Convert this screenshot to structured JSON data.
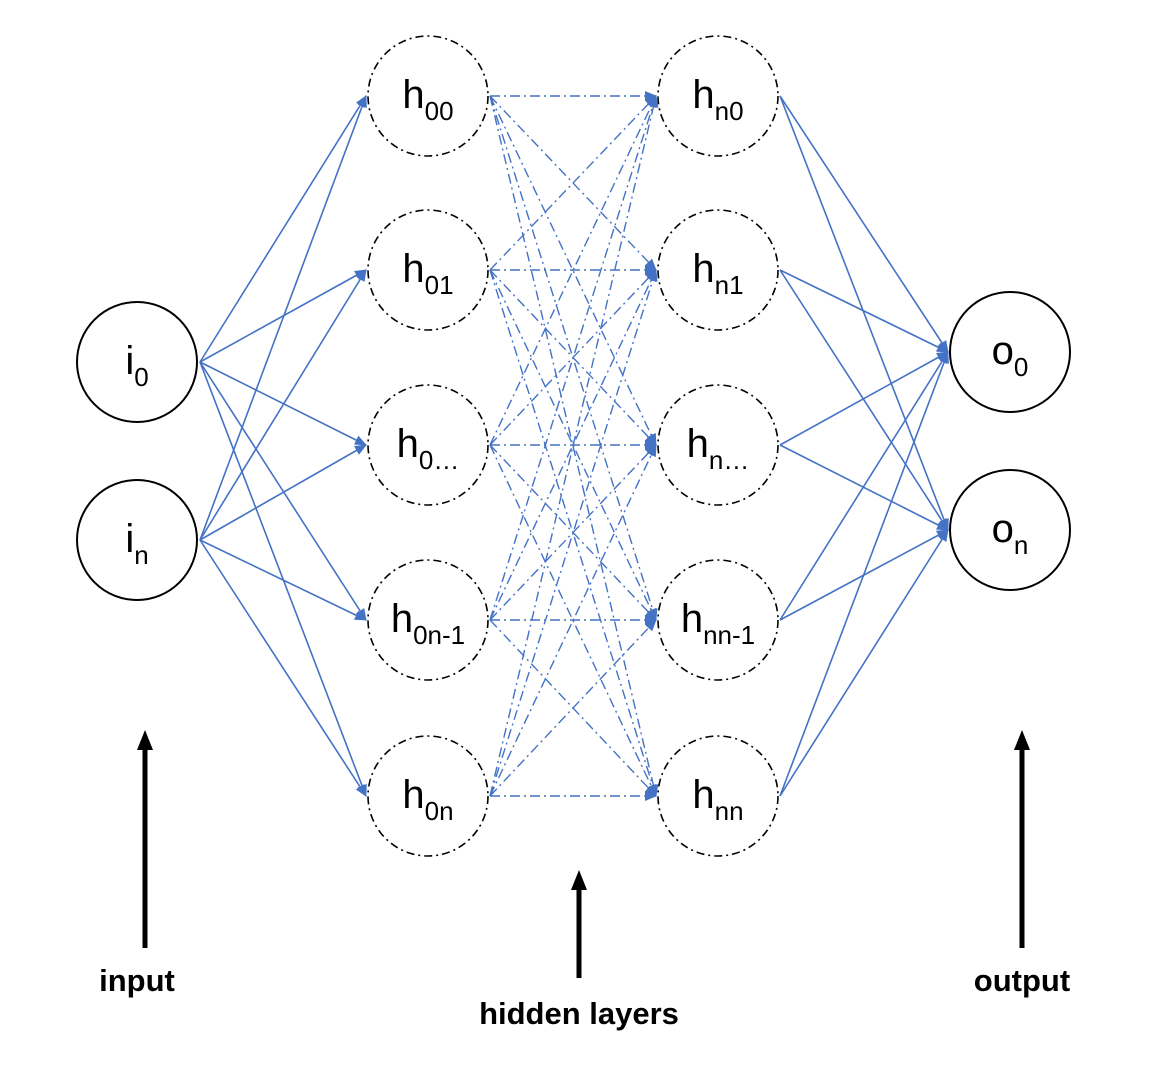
{
  "diagram": {
    "colors": {
      "edge": "#4472c4",
      "node_stroke": "#000000",
      "background": "#ffffff"
    },
    "layers": {
      "input": [
        {
          "id": "i0",
          "base": "i",
          "sub": "0"
        },
        {
          "id": "in",
          "base": "i",
          "sub": "n"
        }
      ],
      "hidden_first": [
        {
          "id": "h00",
          "base": "h",
          "sub": "00"
        },
        {
          "id": "h01",
          "base": "h",
          "sub": "01"
        },
        {
          "id": "h0dots",
          "base": "h",
          "sub": "0…"
        },
        {
          "id": "h0n1",
          "base": "h",
          "sub": "0n-1"
        },
        {
          "id": "h0n",
          "base": "h",
          "sub": "0n"
        }
      ],
      "hidden_last": [
        {
          "id": "hn0",
          "base": "h",
          "sub": "n0"
        },
        {
          "id": "hn1",
          "base": "h",
          "sub": "n1"
        },
        {
          "id": "hndots",
          "base": "h",
          "sub": "n…"
        },
        {
          "id": "hnn1",
          "base": "h",
          "sub": "nn-1"
        },
        {
          "id": "hnn",
          "base": "h",
          "sub": "nn"
        }
      ],
      "output": [
        {
          "id": "o0",
          "base": "o",
          "sub": "0"
        },
        {
          "id": "on",
          "base": "o",
          "sub": "n"
        }
      ]
    },
    "captions": {
      "input": "input",
      "hidden": "hidden layers",
      "output": "output"
    }
  }
}
